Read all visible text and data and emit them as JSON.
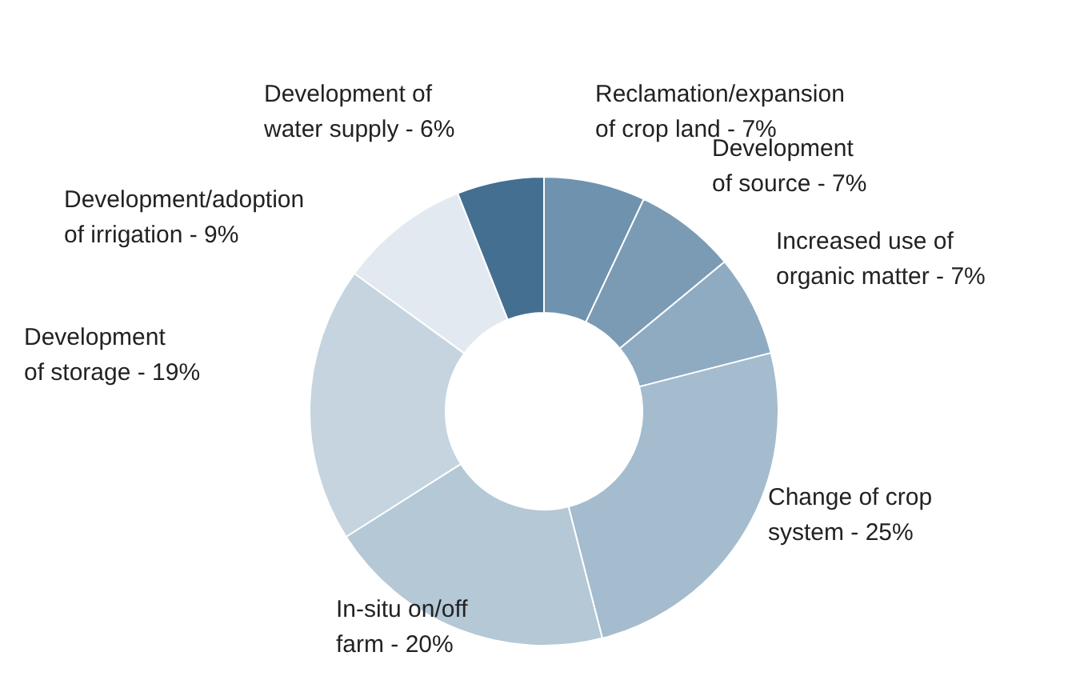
{
  "chart_data": {
    "type": "donut",
    "categories": [
      "Reclamation/expansion\nof crop land - 7%",
      "Development\nof source - 7%",
      "Increased use of\norganic matter - 7%",
      "Change of crop\nsystem - 25%",
      "In-situ on/off\nfarm - 20%",
      "Development\nof storage - 19%",
      "Development/adoption\nof irrigation - 9%",
      "Development of\nwater supply - 6%"
    ],
    "values": [
      7,
      7,
      7,
      25,
      20,
      19,
      9,
      6
    ],
    "colors": [
      "#6f93ae",
      "#7b9bb5",
      "#8fabc2",
      "#a4bccd",
      "#b4c8d6",
      "#c5d4df",
      "#e2e9f0",
      "#456f91"
    ],
    "legend": false
  }
}
